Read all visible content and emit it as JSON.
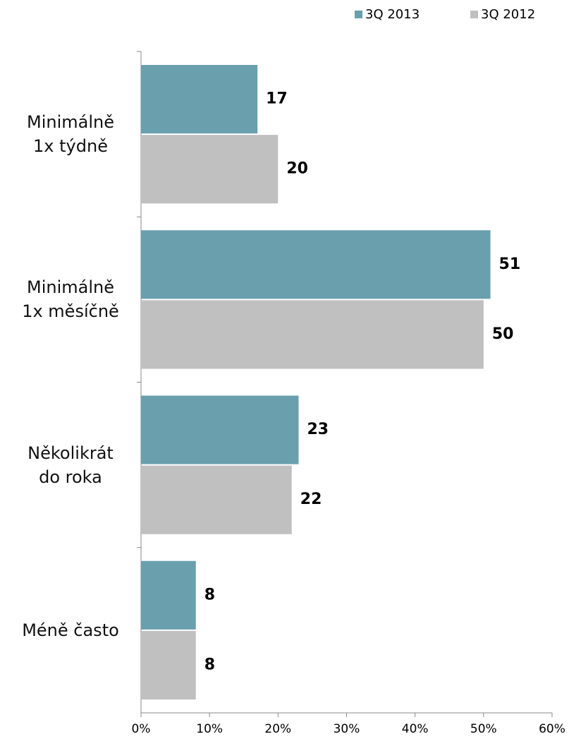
{
  "chart_data": {
    "type": "hbar",
    "categories": [
      "Minimálně\n1x týdně",
      "Minimálně\n1x měsíčně",
      "Několikrát\ndo roka",
      "Méně často"
    ],
    "series": [
      {
        "name": "3Q 2013",
        "color": "#6a9fae",
        "values": [
          17,
          51,
          23,
          8
        ]
      },
      {
        "name": "3Q 2012",
        "color": "#c0c0c0",
        "values": [
          20,
          50,
          22,
          8
        ]
      }
    ],
    "xlim": [
      0,
      60
    ],
    "xticks": [
      {
        "value": 0,
        "label": "0%"
      },
      {
        "value": 10,
        "label": "10%"
      },
      {
        "value": 20,
        "label": "20%"
      },
      {
        "value": 30,
        "label": "30%"
      },
      {
        "value": 40,
        "label": "40%"
      },
      {
        "value": 50,
        "label": "50%"
      },
      {
        "value": 60,
        "label": "60%"
      }
    ],
    "legend": "top-right"
  }
}
